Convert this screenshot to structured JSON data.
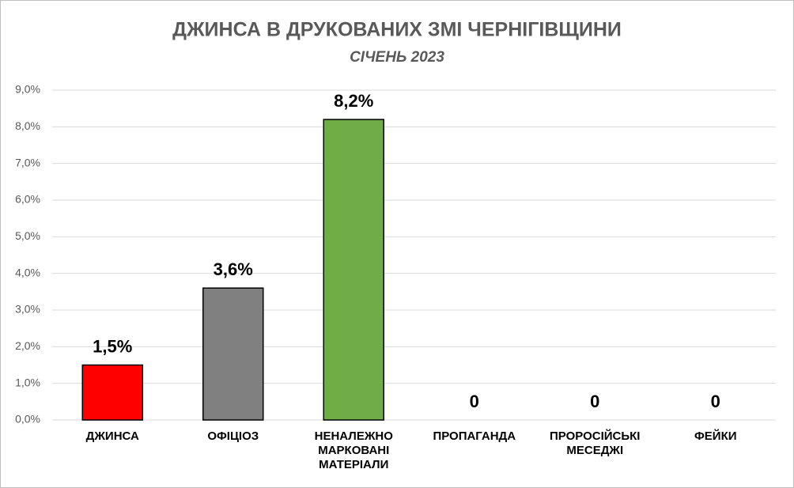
{
  "chart_data": {
    "type": "bar",
    "title": "ДЖИНСА В ДРУКОВАНИХ ЗМІ ЧЕРНІГІВЩИНИ",
    "subtitle": "СІЧЕНЬ 2023",
    "categories": [
      "ДЖИНСА",
      "ОФІЦІОЗ",
      "НЕНАЛЕЖНО МАРКОВАНІ МАТЕРІАЛИ",
      "ПРОПАГАНДА",
      "ПРОРОСІЙСЬКІ МЕСЕДЖІ",
      "ФЕЙКИ"
    ],
    "values": [
      1.5,
      3.6,
      8.2,
      0,
      0,
      0
    ],
    "value_labels": [
      "1,5%",
      "3,6%",
      "8,2%",
      "0",
      "0",
      "0"
    ],
    "colors": [
      "#ff0000",
      "#808080",
      "#70ad47",
      "#808080",
      "#808080",
      "#808080"
    ],
    "ylim": [
      0,
      9
    ],
    "yticks": [
      {
        "value": 0,
        "label": "0,0%"
      },
      {
        "value": 1,
        "label": "1,0%"
      },
      {
        "value": 2,
        "label": "2,0%"
      },
      {
        "value": 3,
        "label": "3,0%"
      },
      {
        "value": 4,
        "label": "4,0%"
      },
      {
        "value": 5,
        "label": "5,0%"
      },
      {
        "value": 6,
        "label": "6,0%"
      },
      {
        "value": 7,
        "label": "7,0%"
      },
      {
        "value": 8,
        "label": "8,0%"
      },
      {
        "value": 9,
        "label": "9,0%"
      }
    ],
    "grid": true
  }
}
